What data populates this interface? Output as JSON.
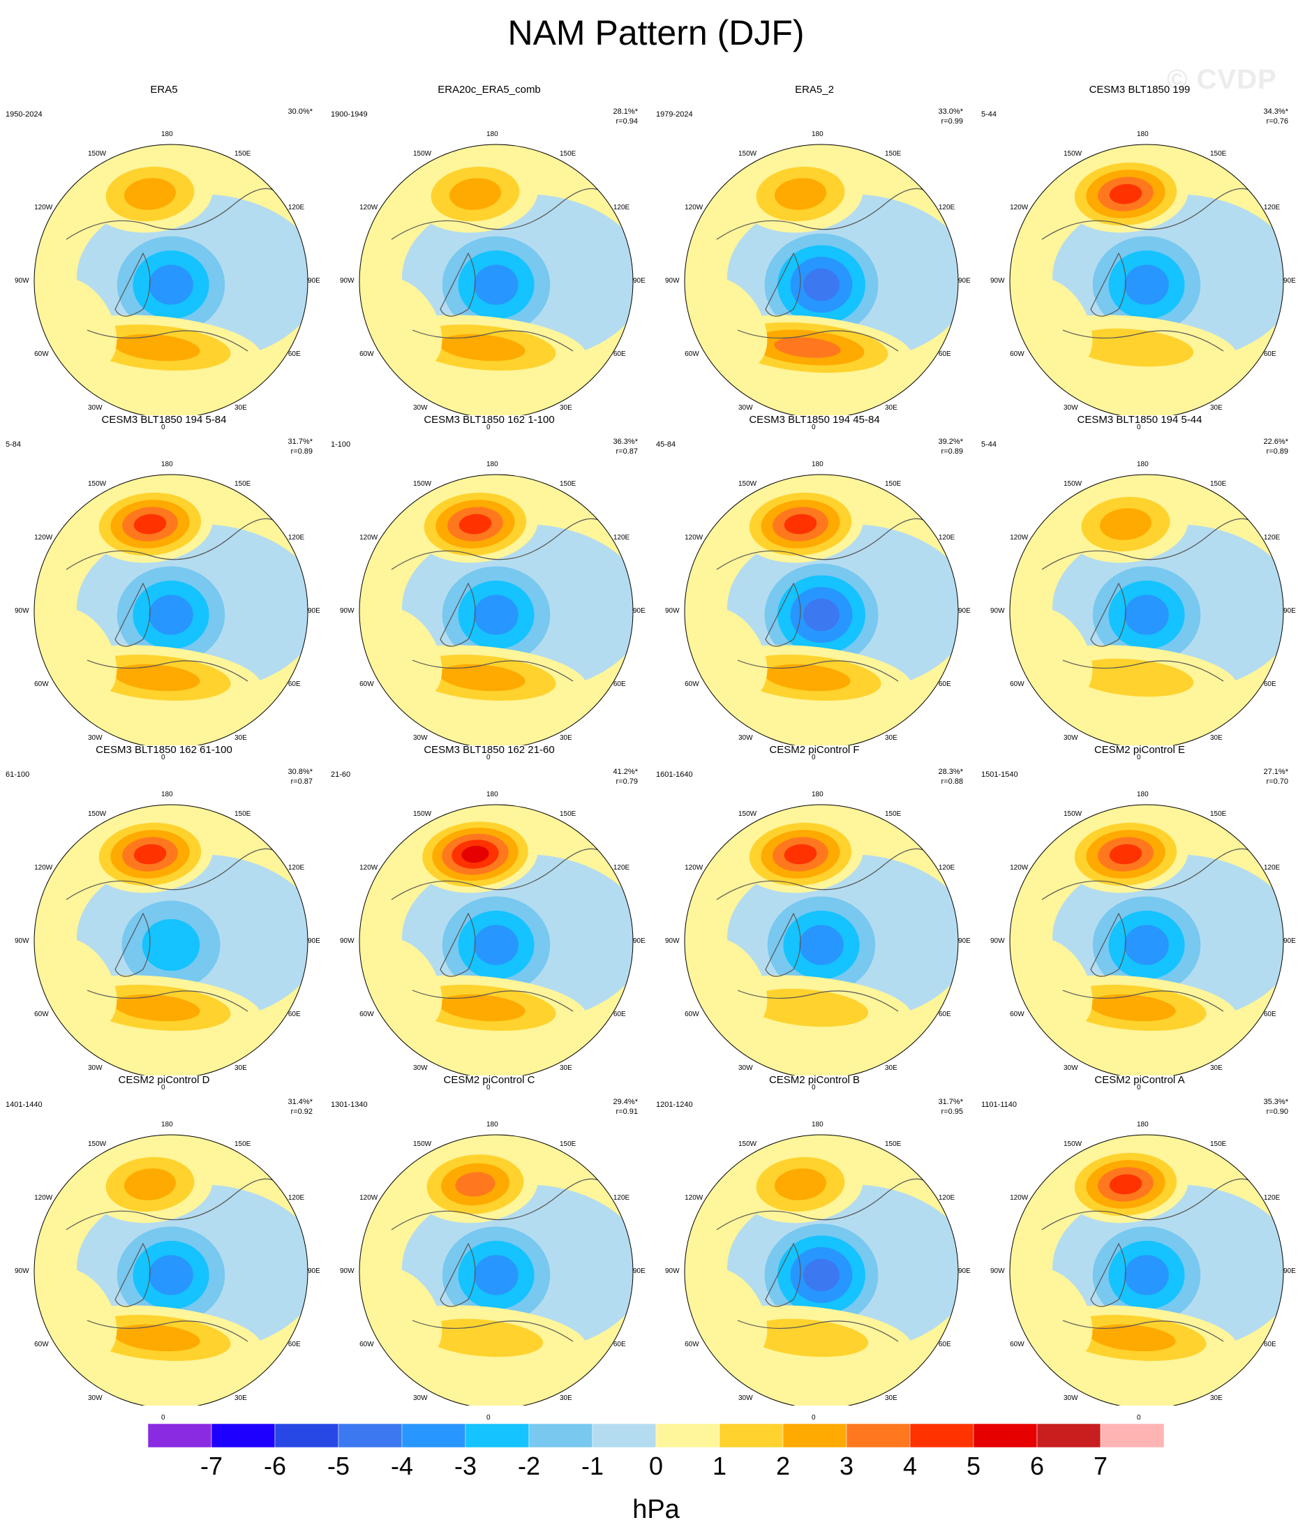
{
  "title": "NAM Pattern (DJF)",
  "watermark": "© CVDP",
  "units": "hPa",
  "lon_labels": [
    "180",
    "150E",
    "120E",
    "90E",
    "60E",
    "30E",
    "0",
    "30W",
    "60W",
    "90W",
    "120W",
    "150W"
  ],
  "colorbar": {
    "colors": [
      "#8a2be2",
      "#1e00ff",
      "#2848e6",
      "#3c78f0",
      "#2896ff",
      "#14c3ff",
      "#78c8f0",
      "#b4dcf0",
      "#fff59a",
      "#ffd22d",
      "#ffaa00",
      "#ff781e",
      "#ff3200",
      "#e60000",
      "#c81e1e",
      "#ffb4b4"
    ],
    "labels": [
      "-7",
      "-6",
      "-5",
      "-4",
      "-3",
      "-2",
      "-1",
      "0",
      "1",
      "2",
      "3",
      "4",
      "5",
      "6",
      "7"
    ]
  },
  "chart_data": {
    "type": "map",
    "panels": [
      {
        "title": "ERA5",
        "years": "1950-2024",
        "pct": "30.0%*",
        "r": "",
        "pac": 0.45,
        "atl": 0.55,
        "arc": -0.6,
        "ang": 0.6
      },
      {
        "title": "ERA20c_ERA5_comb",
        "years": "1900-1949",
        "pct": "28.1%*",
        "r": "r=0.94",
        "pac": 0.55,
        "atl": 0.45,
        "arc": -0.5,
        "ang": 0.5
      },
      {
        "title": "ERA5_2",
        "years": "1979-2024",
        "pct": "33.0%*",
        "r": "r=0.99",
        "pac": 0.45,
        "atl": 0.6,
        "arc": -0.65,
        "ang": 0.65
      },
      {
        "title": "CESM3 BLT1850 199",
        "years": "5-44",
        "pct": "34.3%*",
        "r": "r=0.76",
        "pac": 0.85,
        "atl": 0.35,
        "arc": -0.55,
        "ang": 0.3
      },
      {
        "title": "CESM3 BLT1850 194 5-84",
        "years": "5-84",
        "pct": "31.7%*",
        "r": "r=0.89",
        "pac": 0.75,
        "atl": 0.45,
        "arc": -0.55,
        "ang": 0.55
      },
      {
        "title": "CESM3 BLT1850 162 1-100",
        "years": "1-100",
        "pct": "36.3%*",
        "r": "r=0.87",
        "pac": 0.8,
        "atl": 0.45,
        "arc": -0.5,
        "ang": 0.5
      },
      {
        "title": "CESM3 BLT1850 194 45-84",
        "years": "45-84",
        "pct": "39.2%*",
        "r": "r=0.89",
        "pac": 0.75,
        "atl": 0.5,
        "arc": -0.65,
        "ang": 0.6
      },
      {
        "title": "CESM3 BLT1850 194 5-44",
        "years": "5-44",
        "pct": "22.6%*",
        "r": "r=0.89",
        "pac": 0.5,
        "atl": 0.35,
        "arc": -0.5,
        "ang": 0.5
      },
      {
        "title": "CESM3 BLT1850 162 61-100",
        "years": "61-100",
        "pct": "30.8%*",
        "r": "r=0.87",
        "pac": 0.85,
        "atl": 0.45,
        "arc": -0.45,
        "ang": 0.5
      },
      {
        "title": "CESM3 BLT1850 162 21-60",
        "years": "21-60",
        "pct": "41.2%*",
        "r": "r=0.79",
        "pac": 0.9,
        "atl": 0.45,
        "arc": -0.55,
        "ang": 0.55
      },
      {
        "title": "CESM2 piControl F",
        "years": "1601-1640",
        "pct": "28.3%*",
        "r": "r=0.88",
        "pac": 0.75,
        "atl": 0.4,
        "arc": -0.5,
        "ang": 0.55
      },
      {
        "title": "CESM2 piControl E",
        "years": "1501-1540",
        "pct": "27.1%*",
        "r": "r=0.70",
        "pac": 0.85,
        "atl": 0.45,
        "arc": -0.5,
        "ang": 0.35
      },
      {
        "title": "CESM2 piControl D",
        "years": "1401-1440",
        "pct": "31.4%*",
        "r": "r=0.92",
        "pac": 0.5,
        "atl": 0.45,
        "arc": -0.55,
        "ang": 0.3
      },
      {
        "title": "CESM2 piControl C",
        "years": "1301-1340",
        "pct": "29.4%*",
        "r": "r=0.91",
        "pac": 0.6,
        "atl": 0.35,
        "arc": -0.55,
        "ang": 0.5
      },
      {
        "title": "CESM2 piControl B",
        "years": "1201-1240",
        "pct": "31.7%*",
        "r": "r=0.95",
        "pac": 0.55,
        "atl": 0.4,
        "arc": -0.7,
        "ang": 0.55
      },
      {
        "title": "CESM2 piControl A",
        "years": "1101-1140",
        "pct": "35.3%*",
        "r": "r=0.90",
        "pac": 0.75,
        "atl": 0.45,
        "arc": -0.6,
        "ang": 0.6
      }
    ]
  }
}
